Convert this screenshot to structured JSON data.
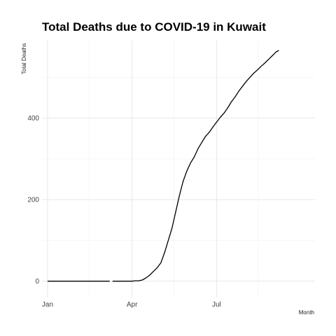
{
  "chart_data": {
    "type": "line",
    "title": "Total Deaths due to COVID-19 in Kuwait",
    "xlabel": "Month",
    "ylabel": "Total Deaths",
    "x_ticks": [
      {
        "date": "2020-01-01",
        "label": "Jan"
      },
      {
        "date": "2020-04-01",
        "label": "Apr"
      },
      {
        "date": "2020-07-01",
        "label": "Jul"
      }
    ],
    "y_ticks": [
      0,
      200,
      400
    ],
    "ylim": [
      -40,
      590
    ],
    "xlim": [
      "2019-12-26",
      "2020-10-15"
    ],
    "grid": true,
    "series": [
      {
        "points": [
          [
            "2020-01-01",
            0
          ],
          [
            "2020-03-08",
            0
          ]
        ]
      },
      {
        "points": [
          [
            "2020-03-11",
            0
          ],
          [
            "2020-04-01",
            0
          ],
          [
            "2020-04-04",
            1
          ],
          [
            "2020-04-08",
            1
          ],
          [
            "2020-04-12",
            3
          ],
          [
            "2020-04-16",
            8
          ],
          [
            "2020-04-20",
            15
          ],
          [
            "2020-04-24",
            24
          ],
          [
            "2020-04-28",
            33
          ],
          [
            "2020-05-02",
            45
          ],
          [
            "2020-05-06",
            70
          ],
          [
            "2020-05-10",
            100
          ],
          [
            "2020-05-14",
            130
          ],
          [
            "2020-05-18",
            170
          ],
          [
            "2020-05-22",
            210
          ],
          [
            "2020-05-26",
            245
          ],
          [
            "2020-05-30",
            270
          ],
          [
            "2020-06-03",
            290
          ],
          [
            "2020-06-07",
            305
          ],
          [
            "2020-06-11",
            325
          ],
          [
            "2020-06-15",
            340
          ],
          [
            "2020-06-19",
            355
          ],
          [
            "2020-06-23",
            365
          ],
          [
            "2020-06-27",
            378
          ],
          [
            "2020-07-01",
            390
          ],
          [
            "2020-07-05",
            402
          ],
          [
            "2020-07-09",
            412
          ],
          [
            "2020-07-13",
            425
          ],
          [
            "2020-07-17",
            440
          ],
          [
            "2020-07-21",
            452
          ],
          [
            "2020-07-25",
            466
          ],
          [
            "2020-07-29",
            478
          ],
          [
            "2020-08-02",
            490
          ],
          [
            "2020-08-06",
            500
          ],
          [
            "2020-08-10",
            510
          ],
          [
            "2020-08-14",
            518
          ],
          [
            "2020-08-18",
            527
          ],
          [
            "2020-08-22",
            535
          ],
          [
            "2020-08-26",
            544
          ],
          [
            "2020-08-30",
            553
          ],
          [
            "2020-09-03",
            562
          ],
          [
            "2020-09-06",
            566
          ]
        ]
      }
    ]
  }
}
